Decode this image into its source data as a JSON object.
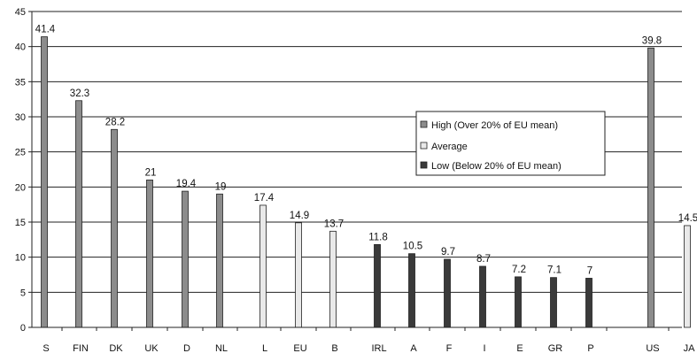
{
  "chart_data": {
    "type": "bar",
    "categories": [
      "S",
      "FIN",
      "DK",
      "UK",
      "D",
      "NL",
      "L",
      "EU",
      "B",
      "IRL",
      "A",
      "F",
      "I",
      "E",
      "GR",
      "P",
      "US",
      "JA"
    ],
    "values": [
      41.4,
      32.3,
      28.2,
      21,
      19.4,
      19,
      17.4,
      14.9,
      13.7,
      11.8,
      10.5,
      9.7,
      8.7,
      7.2,
      7.1,
      7,
      39.8,
      14.5
    ],
    "value_labels": [
      "41.4",
      "32.3",
      "28.2",
      "21",
      "19.4",
      "19",
      "17.4",
      "14.9",
      "13.7",
      "11.8",
      "10.5",
      "9.7",
      "8.7",
      "7.2",
      "7.1",
      "7",
      "39.8",
      "14.5"
    ],
    "groups": [
      "high",
      "high",
      "high",
      "high",
      "high",
      "high",
      "average",
      "average",
      "average",
      "low",
      "low",
      "low",
      "low",
      "low",
      "low",
      "low",
      "high",
      "average"
    ],
    "ylim": [
      0,
      45
    ],
    "yticks": [
      "0",
      "5",
      "10",
      "15",
      "20",
      "25",
      "30",
      "35",
      "40",
      "45"
    ],
    "grid": "horizontal",
    "legend": {
      "position": "right-center",
      "items": [
        {
          "key": "high",
          "label": "High (Over 20% of EU mean)",
          "color": "#8c8c8c"
        },
        {
          "key": "average",
          "label": "Average",
          "color": "#e9e9e9"
        },
        {
          "key": "low",
          "label": "Low (Below 20% of EU mean)",
          "color": "#3a3a3a"
        }
      ]
    }
  }
}
